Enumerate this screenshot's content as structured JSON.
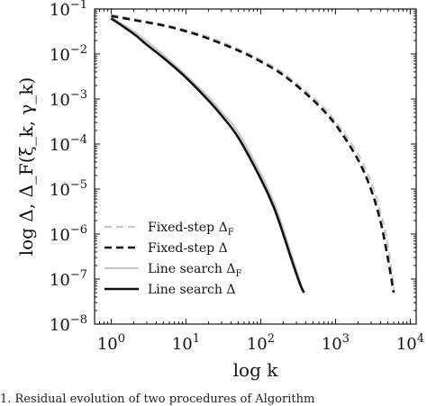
{
  "chart_data": {
    "type": "line",
    "xlabel": "log k",
    "ylabel": "log Δ, Δ_F(ξ_k, γ_k)",
    "xscale": "log",
    "yscale": "log",
    "xlim": [
      0.6,
      12000
    ],
    "ylim": [
      1e-08,
      0.1
    ],
    "grid": false,
    "legend_position": "bottom-left",
    "x_tick_labels": [
      "10^0",
      "10^1",
      "10^2",
      "10^3",
      "10^4"
    ],
    "y_tick_labels": [
      "10^-1",
      "10^-2",
      "10^-3",
      "10^-4",
      "10^-5",
      "10^-6",
      "10^-7",
      "10^-8"
    ],
    "series": [
      {
        "name": "Fixed-step Δ_F",
        "color": "#c8c8c8",
        "style": "dashed",
        "x": [
          1,
          2,
          5,
          10,
          20,
          50,
          100,
          200,
          500,
          1000,
          2000,
          3000,
          4000,
          5000,
          6000
        ],
        "y": [
          0.075,
          0.06,
          0.045,
          0.034,
          0.024,
          0.013,
          0.0075,
          0.0038,
          0.0011,
          0.00032,
          6e-05,
          1.4e-05,
          3e-06,
          6e-07,
          6e-08
        ]
      },
      {
        "name": "Fixed-step Δ",
        "color": "#111111",
        "style": "dashed",
        "x": [
          1,
          2,
          5,
          10,
          20,
          50,
          100,
          200,
          500,
          1000,
          2000,
          3000,
          4000,
          5000,
          6000
        ],
        "y": [
          0.07,
          0.057,
          0.043,
          0.032,
          0.022,
          0.012,
          0.0068,
          0.0034,
          0.00095,
          0.00027,
          4.5e-05,
          9.5e-06,
          1.9e-06,
          3e-07,
          5e-08
        ]
      },
      {
        "name": "Line search Δ_F",
        "color": "#c8c8c8",
        "style": "solid",
        "x": [
          1,
          2,
          3,
          5,
          10,
          20,
          30,
          50,
          100,
          150,
          200,
          250,
          300,
          350,
          380
        ],
        "y": [
          0.065,
          0.032,
          0.019,
          0.0095,
          0.0034,
          0.0011,
          0.00052,
          0.00018,
          2.2e-05,
          5e-06,
          1.3e-06,
          4e-07,
          1.6e-07,
          7e-08,
          5e-08
        ]
      },
      {
        "name": "Line search Δ",
        "color": "#111111",
        "style": "solid",
        "x": [
          1,
          2,
          3,
          5,
          10,
          20,
          30,
          50,
          100,
          150,
          200,
          250,
          300,
          350,
          380
        ],
        "y": [
          0.062,
          0.028,
          0.016,
          0.0082,
          0.003,
          0.00093,
          0.00043,
          0.00014,
          1.7e-05,
          3.9e-06,
          1e-06,
          3.2e-07,
          1.3e-07,
          6.5e-08,
          5e-08
        ]
      }
    ]
  },
  "caption": "1.   Residual evolution of two procedures of Algorithm"
}
